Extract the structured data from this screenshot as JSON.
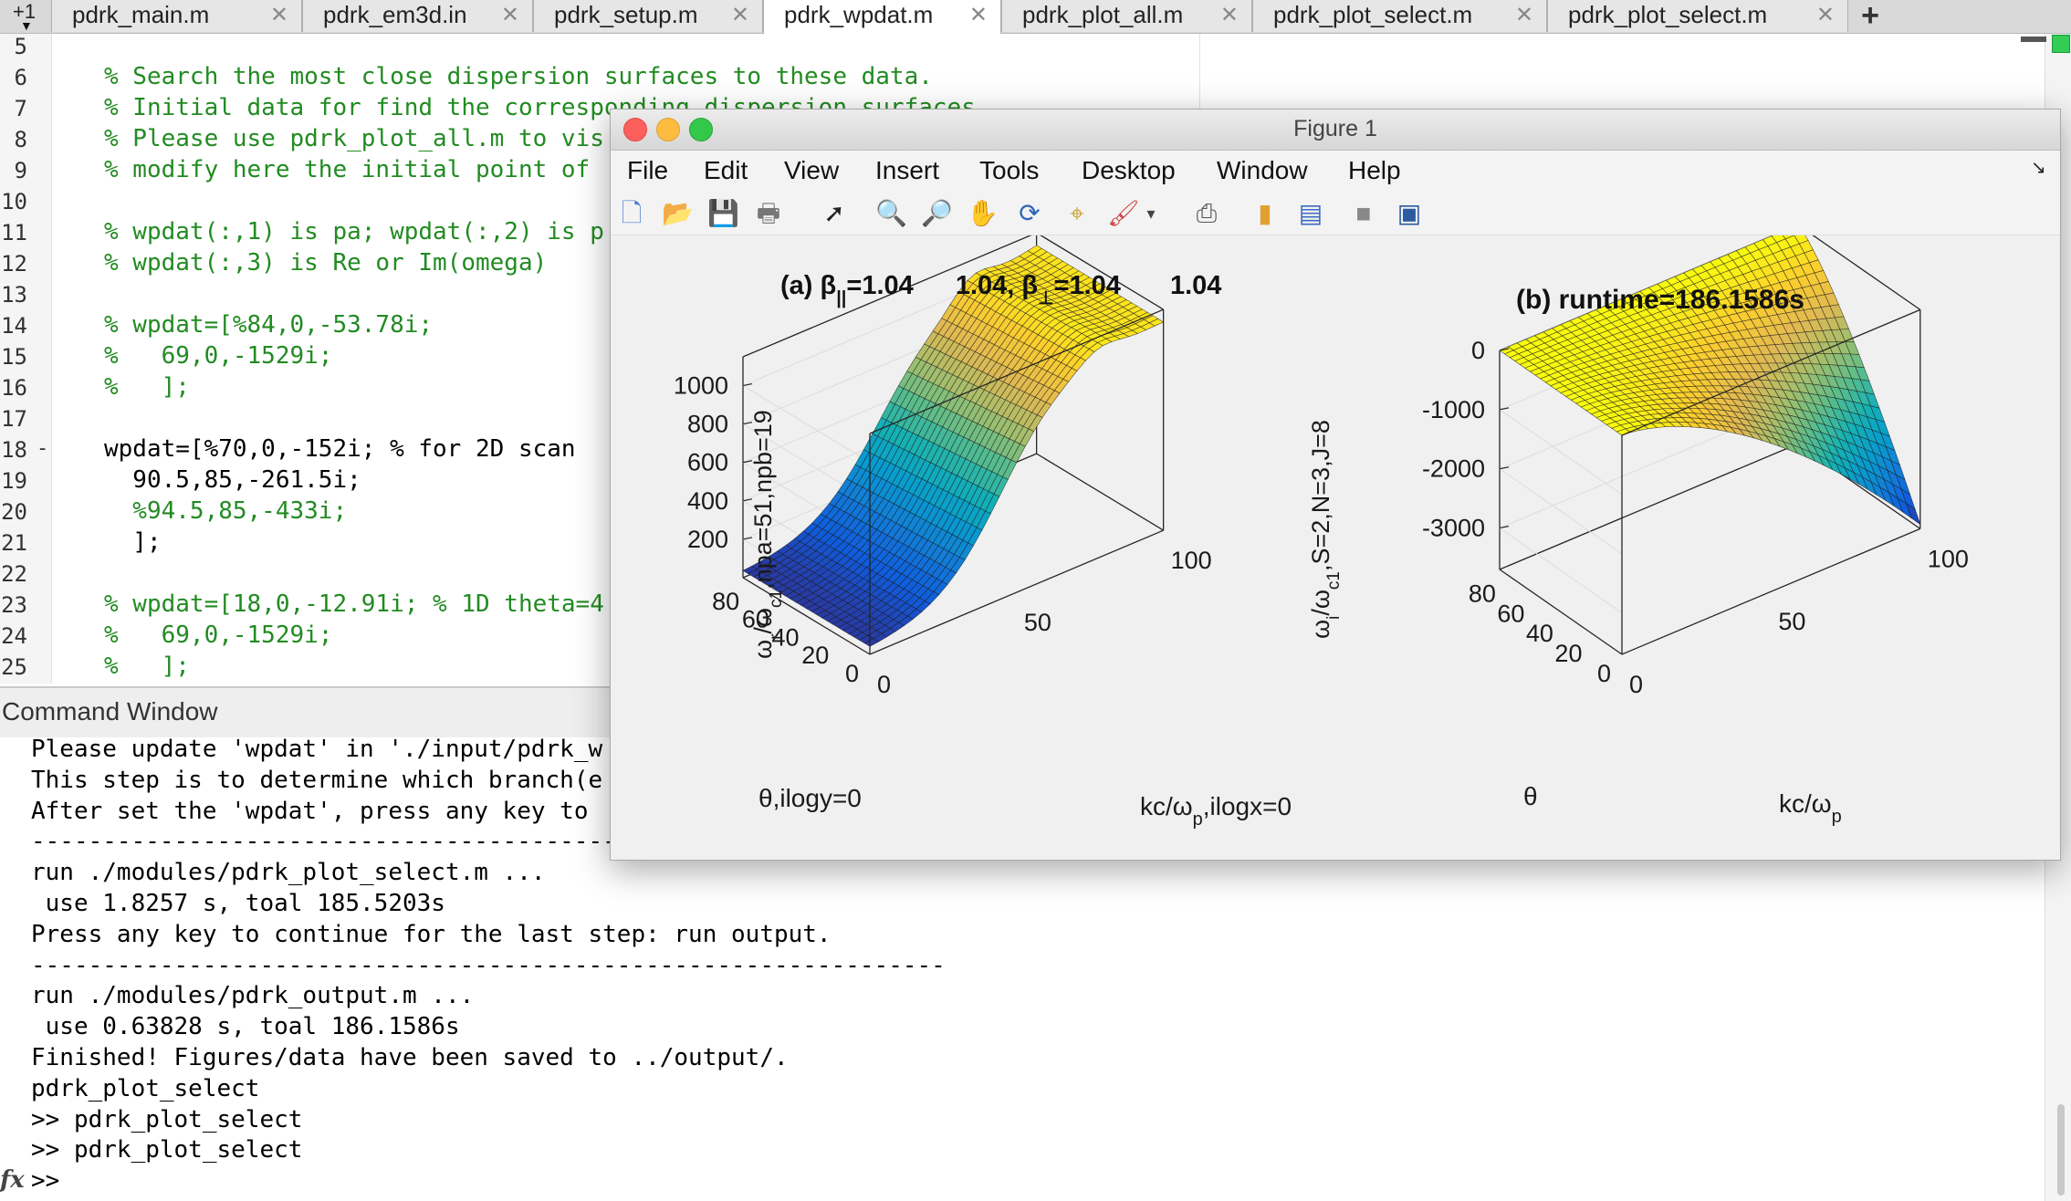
{
  "tabs": {
    "count_label": "+1",
    "items": [
      {
        "label": "pdrk_main.m",
        "active": false
      },
      {
        "label": "pdrk_em3d.in",
        "active": false
      },
      {
        "label": "pdrk_setup.m",
        "active": false
      },
      {
        "label": "pdrk_wpdat.m",
        "active": true
      },
      {
        "label": "pdrk_plot_all.m",
        "active": false
      },
      {
        "label": "pdrk_plot_select.m",
        "active": false
      },
      {
        "label": "pdrk_plot_select.m",
        "active": false
      }
    ],
    "close_glyph": "✕",
    "add_label": "+"
  },
  "editor": {
    "lines": [
      {
        "num": "5",
        "text": "",
        "comment": false,
        "bp": ""
      },
      {
        "num": "6",
        "text": "% Search the most close dispersion surfaces to these data.",
        "comment": true,
        "bp": ""
      },
      {
        "num": "7",
        "text": "% Initial data for find the corresponding dispersion surfaces",
        "comment": true,
        "bp": ""
      },
      {
        "num": "8",
        "text": "% Please use pdrk_plot_all.m to vis",
        "comment": true,
        "bp": ""
      },
      {
        "num": "9",
        "text": "% modify here the initial point of",
        "comment": true,
        "bp": ""
      },
      {
        "num": "10",
        "text": "",
        "comment": false,
        "bp": ""
      },
      {
        "num": "11",
        "text": "% wpdat(:,1) is pa; wpdat(:,2) is p",
        "comment": true,
        "bp": ""
      },
      {
        "num": "12",
        "text": "% wpdat(:,3) is Re or Im(omega)",
        "comment": true,
        "bp": ""
      },
      {
        "num": "13",
        "text": "",
        "comment": false,
        "bp": ""
      },
      {
        "num": "14",
        "text": "% wpdat=[%84,0,-53.78i;",
        "comment": true,
        "bp": ""
      },
      {
        "num": "15",
        "text": "%   69,0,-1529i;",
        "comment": true,
        "bp": ""
      },
      {
        "num": "16",
        "text": "%   ];",
        "comment": true,
        "bp": ""
      },
      {
        "num": "17",
        "text": "",
        "comment": false,
        "bp": ""
      },
      {
        "num": "18",
        "text": "wpdat=[%70,0,-152i; % for 2D scan",
        "comment": false,
        "bp": "-"
      },
      {
        "num": "19",
        "text": "  90.5,85,-261.5i;",
        "comment": false,
        "bp": ""
      },
      {
        "num": "20",
        "text": "  %94.5,85,-433i;",
        "comment": true,
        "bp": ""
      },
      {
        "num": "21",
        "text": "  ];",
        "comment": false,
        "bp": ""
      },
      {
        "num": "22",
        "text": "",
        "comment": false,
        "bp": ""
      },
      {
        "num": "23",
        "text": "% wpdat=[18,0,-12.91i; % 1D theta=4",
        "comment": true,
        "bp": ""
      },
      {
        "num": "24",
        "text": "%   69,0,-1529i;",
        "comment": true,
        "bp": ""
      },
      {
        "num": "25",
        "text": "%   ];",
        "comment": true,
        "bp": ""
      }
    ]
  },
  "command_window": {
    "title": "Command Window",
    "lines": [
      "Please update 'wpdat' in './input/pdrk_w",
      "This step is to determine which branch(e",
      "After set the 'wpdat', press any key to ",
      "----------------------------------------------------------------",
      "run ./modules/pdrk_plot_select.m ...",
      " use 1.8257 s, toal 185.5203s",
      "Press any key to continue for the last step: run output.",
      "----------------------------------------------------------------",
      "run ./modules/pdrk_output.m ...",
      " use 0.63828 s, toal 186.1586s",
      "Finished! Figures/data have been saved to ../output/.",
      "pdrk_plot_select",
      ">> pdrk_plot_select",
      ">> pdrk_plot_select",
      ">> "
    ],
    "fx_label": "fx"
  },
  "figure": {
    "title": "Figure 1",
    "menu": [
      "File",
      "Edit",
      "View",
      "Insert",
      "Tools",
      "Desktop",
      "Window",
      "Help"
    ],
    "dock_glyph": "↘",
    "toolbar": [
      {
        "name": "new-figure-icon",
        "glyph": "🗋"
      },
      {
        "name": "open-file-icon",
        "glyph": "📂"
      },
      {
        "name": "save-icon",
        "glyph": "💾"
      },
      {
        "name": "print-icon",
        "glyph": "🖶"
      },
      {
        "name": "pointer-icon",
        "glyph": "➚"
      },
      {
        "name": "zoom-in-icon",
        "glyph": "🔍"
      },
      {
        "name": "zoom-out-icon",
        "glyph": "🔎"
      },
      {
        "name": "pan-hand-icon",
        "glyph": "✋"
      },
      {
        "name": "rotate-3d-icon",
        "glyph": "⟳"
      },
      {
        "name": "data-cursor-icon",
        "glyph": "⌖"
      },
      {
        "name": "brush-icon",
        "glyph": "🖌"
      },
      {
        "name": "dropdown-arrow-icon",
        "glyph": "▾"
      },
      {
        "name": "link-plot-icon",
        "glyph": "⎙"
      },
      {
        "name": "colorbar-icon",
        "glyph": "▮"
      },
      {
        "name": "legend-icon",
        "glyph": "▤"
      },
      {
        "name": "hide-tools-icon",
        "glyph": "■"
      },
      {
        "name": "show-tools-icon",
        "glyph": "▣"
      }
    ]
  },
  "chart_data": [
    {
      "type": "surface",
      "title": "(a) β||=1.04        1.04, β⊥=1.04        1.04",
      "title_parts": [
        "(a) β",
        "||",
        "=1.04",
        "1.04, β",
        "⊥",
        "=1.04",
        "1.04"
      ],
      "xlabel": "kc/ωp,ilogx=0",
      "xlabel_parts": [
        "kc/ω",
        "p",
        ",ilogx=0"
      ],
      "ylabel": "θ,ilogy=0",
      "zlabel": "ωr/ωc1,npa=51,npb=19",
      "zlabel_parts": [
        "ω",
        "r",
        "/ω",
        "c1",
        ",npa=51,npb=19"
      ],
      "xlim": [
        0,
        100
      ],
      "ylim": [
        0,
        85
      ],
      "zlim": [
        0,
        1150
      ],
      "xticks": [
        "0",
        "50",
        "100"
      ],
      "yticks": [
        "0",
        "20",
        "40",
        "60",
        "80"
      ],
      "zticks": [
        "200",
        "400",
        "600",
        "800",
        "1000"
      ],
      "ztick_values": [
        200,
        400,
        600,
        800,
        1000
      ],
      "colormap": "parula"
    },
    {
      "type": "surface",
      "title": "(b) runtime=186.1586s",
      "xlabel": "kc/ωp",
      "xlabel_parts": [
        "kc/ω",
        "p",
        ""
      ],
      "ylabel": "θ",
      "zlabel": "ωi/ωc1,S=2,N=3,J=8",
      "zlabel_parts": [
        "ω",
        "i",
        "/ω",
        "c1",
        ",S=2,N=3,J=8"
      ],
      "xlim": [
        0,
        100
      ],
      "ylim": [
        0,
        85
      ],
      "zlim": [
        -3700,
        0
      ],
      "xticks": [
        "0",
        "50",
        "100"
      ],
      "yticks": [
        "0",
        "20",
        "40",
        "60",
        "80"
      ],
      "zticks": [
        "0",
        "-1000",
        "-2000",
        "-3000"
      ],
      "ztick_values": [
        0,
        -1000,
        -2000,
        -3000
      ],
      "colormap": "parula"
    }
  ]
}
